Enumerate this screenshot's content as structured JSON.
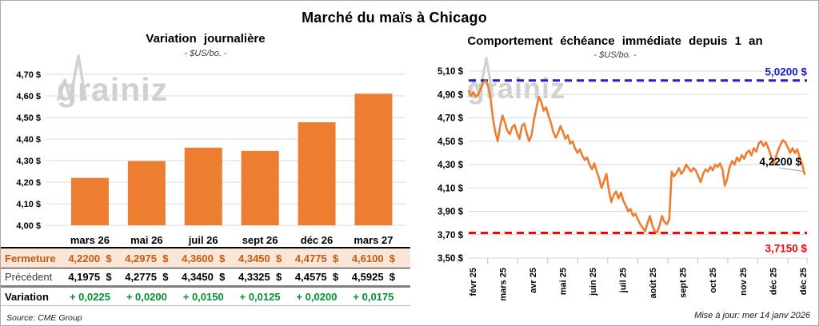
{
  "page": {
    "title": "Marché du maïs à Chicago",
    "source_note": "Source: CME Group",
    "update_note": "Mise à jour: mer 14 janv 2026",
    "watermark": {
      "part1": "grain",
      "part2": "iz"
    }
  },
  "colors": {
    "bar_orange": "#ed7d31",
    "line_orange": "#ed7d31",
    "grid": "#dadada",
    "tick": "#bfbfbf",
    "upper_blue": "#2020cc",
    "lower_red": "#fe0000",
    "close_text": "#c55a11",
    "close_bg": "#fbe5d6",
    "variation_green": "#009130",
    "leader_gray": "#9b9b9b",
    "watermark_gray": "#c8c8c8"
  },
  "chart_data": [
    {
      "type": "bar",
      "title": "Variation journalière",
      "subtitle": "- $US/bo. -",
      "categories": [
        "mars 26",
        "mai 26",
        "juil 26",
        "sept 26",
        "déc 26",
        "mars 27"
      ],
      "values": [
        4.22,
        4.2975,
        4.36,
        4.345,
        4.4775,
        4.61
      ],
      "ylim": [
        4.0,
        4.7
      ],
      "ytick_labels": [
        "4,70 $",
        "4,60 $",
        "4,50 $",
        "4,40 $",
        "4,30 $",
        "4,20 $",
        "4,10 $",
        "4,00 $"
      ],
      "grid": true,
      "table": {
        "rows": [
          {
            "key": "close",
            "label": "Fermeture",
            "values": [
              "4,2200  $",
              "4,2975  $",
              "4,3600  $",
              "4,3450  $",
              "4,4775  $",
              "4,6100  $"
            ]
          },
          {
            "key": "prev",
            "label": "Précédent",
            "values": [
              "4,1975  $",
              "4,2775  $",
              "4,3450  $",
              "4,3325  $",
              "4,4575  $",
              "4,5925  $"
            ]
          },
          {
            "key": "var",
            "label": "Variation",
            "values": [
              "+ 0,0225",
              "+ 0,0200",
              "+ 0,0150",
              "+ 0,0125",
              "+ 0,0200",
              "+ 0,0175"
            ]
          }
        ]
      }
    },
    {
      "type": "line",
      "title": "Comportement échéance immédiate depuis 1 an",
      "subtitle": "- $US/bo. -",
      "x_labels": [
        "févr 25",
        "mars 25",
        "avr 25",
        "mai 25",
        "juin 25",
        "juil 25",
        "août 25",
        "sept 25",
        "oct 25",
        "nov 25",
        "déc 25",
        "déc 25"
      ],
      "ylim": [
        3.5,
        5.1
      ],
      "ytick_labels": [
        "5,10 $",
        "4,90 $",
        "4,70 $",
        "4,50 $",
        "4,30 $",
        "4,10 $",
        "3,90 $",
        "3,70 $",
        "3,50 $"
      ],
      "grid": true,
      "upper_bound": {
        "value": 5.02,
        "label": "5,0200 $"
      },
      "lower_bound": {
        "value": 3.715,
        "label": "3,7150 $"
      },
      "last_point": {
        "value": 4.22,
        "label": "4,2200 $"
      },
      "values": [
        4.93,
        4.89,
        4.92,
        4.88,
        4.9,
        4.95,
        5.0,
        5.02,
        4.97,
        4.88,
        4.7,
        4.58,
        4.5,
        4.63,
        4.72,
        4.66,
        4.59,
        4.56,
        4.62,
        4.64,
        4.57,
        4.52,
        4.63,
        4.65,
        4.57,
        4.5,
        4.55,
        4.68,
        4.78,
        4.88,
        4.84,
        4.76,
        4.79,
        4.72,
        4.66,
        4.58,
        4.53,
        4.57,
        4.63,
        4.58,
        4.52,
        4.55,
        4.48,
        4.5,
        4.44,
        4.4,
        4.43,
        4.38,
        4.34,
        4.36,
        4.3,
        4.26,
        4.31,
        4.24,
        4.18,
        4.1,
        4.16,
        4.22,
        4.08,
        3.98,
        4.04,
        4.07,
        4.01,
        4.06,
        3.99,
        3.95,
        3.9,
        3.92,
        3.86,
        3.88,
        3.83,
        3.79,
        3.76,
        3.73,
        3.8,
        3.86,
        3.78,
        3.73,
        3.72,
        3.78,
        3.86,
        3.81,
        3.79,
        3.83,
        4.24,
        4.2,
        4.23,
        4.27,
        4.22,
        4.25,
        4.3,
        4.27,
        4.24,
        4.27,
        4.25,
        4.2,
        4.15,
        4.22,
        4.26,
        4.24,
        4.28,
        4.25,
        4.3,
        4.28,
        4.31,
        4.26,
        4.12,
        4.18,
        4.28,
        4.33,
        4.3,
        4.36,
        4.33,
        4.38,
        4.35,
        4.4,
        4.42,
        4.38,
        4.44,
        4.41,
        4.48,
        4.5,
        4.46,
        4.49,
        4.44,
        4.38,
        4.3,
        4.36,
        4.42,
        4.47,
        4.51,
        4.49,
        4.45,
        4.4,
        4.44,
        4.4,
        4.43,
        4.36,
        4.3,
        4.22
      ]
    }
  ]
}
